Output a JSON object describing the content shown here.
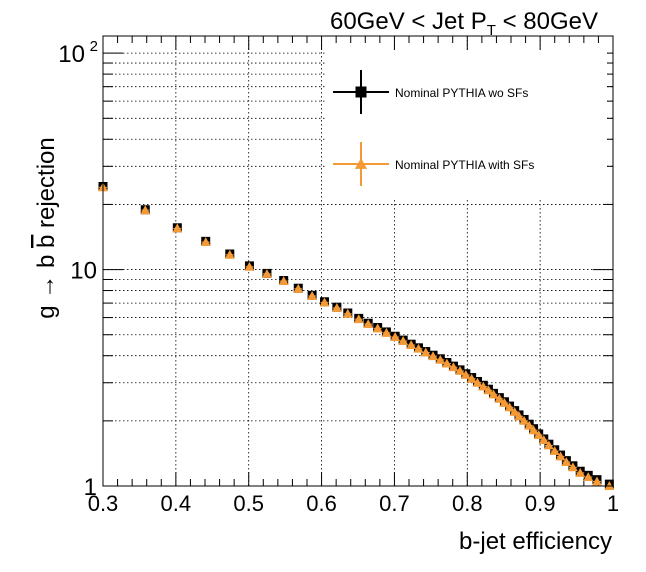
{
  "chart_data": {
    "type": "scatter",
    "title": "60GeV < Jet P",
    "title_sub": "T",
    "title_tail": " < 80GeV",
    "xlabel": "b-jet efficiency",
    "ylabel": "g → b b rejection",
    "ylabel_parts": {
      "pre": "g → b ",
      "bar": "b",
      "post": " rejection"
    },
    "xlim": [
      0.3,
      1.0
    ],
    "ylim": [
      1,
      120
    ],
    "yscale": "log",
    "grid": true,
    "x_ticks": [
      {
        "value": 0.3,
        "label": "0.3"
      },
      {
        "value": 0.4,
        "label": "0.4"
      },
      {
        "value": 0.5,
        "label": "0.5"
      },
      {
        "value": 0.6,
        "label": "0.6"
      },
      {
        "value": 0.7,
        "label": "0.7"
      },
      {
        "value": 0.8,
        "label": "0.8"
      },
      {
        "value": 0.9,
        "label": "0.9"
      },
      {
        "value": 1.0,
        "label": "1"
      }
    ],
    "y_ticks": [
      {
        "value": 1,
        "label": "1"
      },
      {
        "value": 10,
        "label": "10"
      },
      {
        "value": 100,
        "label": "10",
        "sup": "2"
      }
    ],
    "legend_position": "top-right",
    "x": [
      0.3,
      0.358,
      0.402,
      0.441,
      0.474,
      0.501,
      0.525,
      0.548,
      0.568,
      0.587,
      0.604,
      0.621,
      0.636,
      0.651,
      0.664,
      0.677,
      0.689,
      0.701,
      0.712,
      0.723,
      0.733,
      0.743,
      0.753,
      0.763,
      0.772,
      0.781,
      0.79,
      0.798,
      0.806,
      0.814,
      0.822,
      0.829,
      0.836,
      0.844,
      0.851,
      0.858,
      0.865,
      0.871,
      0.878,
      0.885,
      0.891,
      0.898,
      0.905,
      0.912,
      0.92,
      0.928,
      0.936,
      0.945,
      0.955,
      0.966,
      0.978,
      0.995
    ],
    "series": [
      {
        "name": "Nominal PYTHIA wo SFs",
        "color": "#000000",
        "marker": "square",
        "values": [
          24.2,
          18.9,
          15.6,
          13.5,
          11.8,
          10.4,
          9.6,
          8.9,
          8.2,
          7.6,
          7.1,
          6.7,
          6.3,
          5.95,
          5.65,
          5.4,
          5.15,
          4.92,
          4.72,
          4.52,
          4.35,
          4.18,
          4.02,
          3.87,
          3.72,
          3.58,
          3.44,
          3.3,
          3.17,
          3.04,
          2.92,
          2.8,
          2.68,
          2.56,
          2.45,
          2.34,
          2.23,
          2.13,
          2.03,
          1.93,
          1.84,
          1.74,
          1.65,
          1.56,
          1.47,
          1.39,
          1.31,
          1.24,
          1.17,
          1.12,
          1.07,
          1.02
        ]
      },
      {
        "name": "Nominal PYTHIA with SFs",
        "color": "#f39a36",
        "marker": "triangle",
        "values": [
          24.0,
          18.8,
          15.5,
          13.4,
          11.7,
          10.3,
          9.55,
          8.85,
          8.15,
          7.55,
          7.05,
          6.65,
          6.25,
          5.9,
          5.6,
          5.35,
          5.1,
          4.88,
          4.68,
          4.48,
          4.31,
          4.14,
          3.98,
          3.83,
          3.68,
          3.54,
          3.4,
          3.26,
          3.13,
          3.0,
          2.88,
          2.77,
          2.65,
          2.53,
          2.42,
          2.31,
          2.2,
          2.1,
          2.0,
          1.9,
          1.81,
          1.72,
          1.63,
          1.54,
          1.45,
          1.37,
          1.29,
          1.22,
          1.15,
          1.1,
          1.05,
          1.0
        ]
      }
    ]
  }
}
